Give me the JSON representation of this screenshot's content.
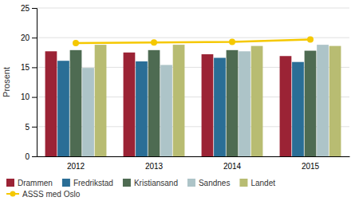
{
  "chart_data": {
    "type": "bar",
    "ylabel": "Prosent",
    "categories": [
      "2012",
      "2013",
      "2014",
      "2015"
    ],
    "series": [
      {
        "name": "Drammen",
        "color": "#9b2335",
        "values": [
          17.7,
          17.5,
          17.2,
          16.9
        ]
      },
      {
        "name": "Fredrikstad",
        "color": "#2a6e96",
        "values": [
          16.1,
          16.0,
          16.6,
          15.9
        ]
      },
      {
        "name": "Kristiansand",
        "color": "#4e6b52",
        "values": [
          17.9,
          17.9,
          17.9,
          17.8
        ]
      },
      {
        "name": "Sandnes",
        "color": "#adc4c8",
        "values": [
          14.9,
          15.4,
          17.7,
          18.8
        ]
      },
      {
        "name": "Landet",
        "color": "#b8bc72",
        "values": [
          18.8,
          18.8,
          18.6,
          18.6
        ]
      },
      {
        "name": "ASSS med Oslo",
        "type": "line",
        "color": "#f5c800",
        "marker": "circle",
        "values": [
          19.1,
          19.2,
          19.3,
          19.7
        ]
      }
    ],
    "ylim": [
      0,
      25
    ],
    "yticks": [
      0,
      5,
      10,
      15,
      20,
      25
    ],
    "grid": true,
    "legend": "bottom"
  }
}
